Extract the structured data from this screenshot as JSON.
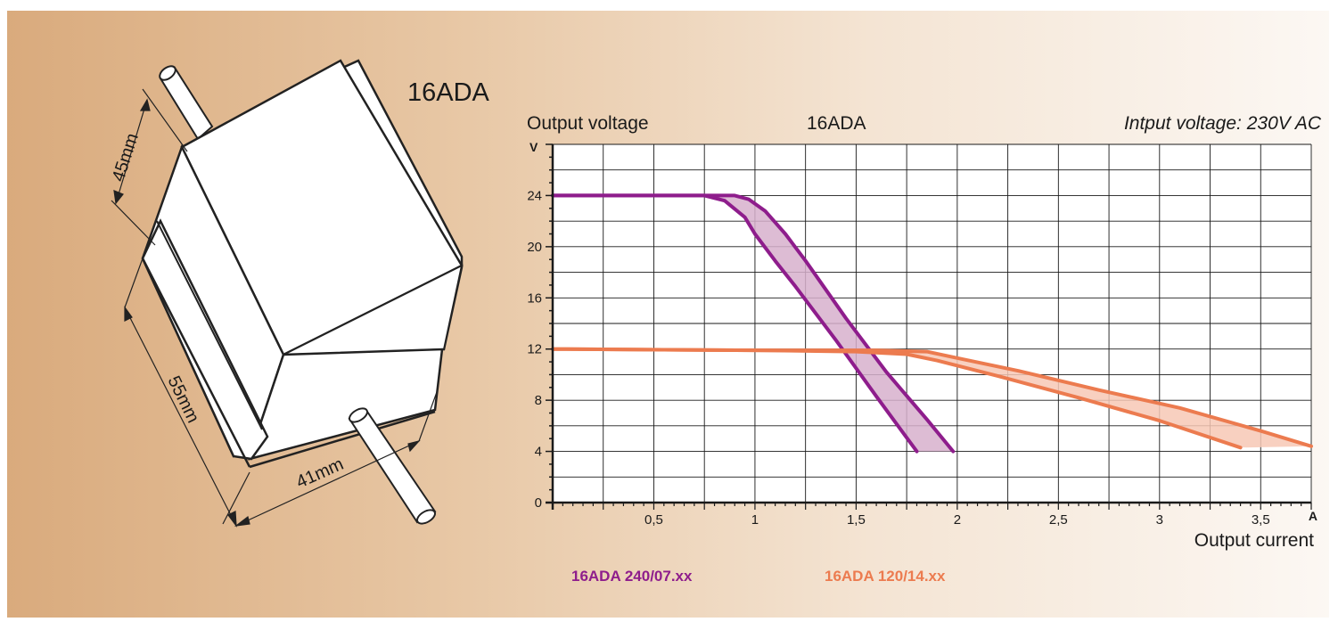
{
  "product": {
    "title": "16ADA",
    "dimensions": {
      "height": "45mm",
      "length": "55mm",
      "width": "41mm"
    }
  },
  "chart_data": {
    "type": "line",
    "title": "16ADA",
    "note": "Intput voltage: 230V AC",
    "ylabel": "Output voltage",
    "yunit": "V",
    "xlabel": "Output current",
    "xunit": "A",
    "xlim": [
      0,
      3.75
    ],
    "ylim": [
      0,
      28
    ],
    "x_ticks": [
      0.5,
      1,
      1.5,
      2,
      2.5,
      3,
      3.5
    ],
    "x_tick_labels": [
      "0,5",
      "1",
      "1,5",
      "2",
      "2,5",
      "3",
      "3,5"
    ],
    "y_ticks": [
      0,
      4,
      8,
      12,
      16,
      20,
      24
    ],
    "y_tick_labels": [
      "0",
      "4",
      "8",
      "12",
      "16",
      "20",
      "24"
    ],
    "grid": true,
    "series": [
      {
        "name": "16ADA 240/07.xx",
        "color": "#8e1d8c",
        "band_color": "#d7b0cc",
        "lower": {
          "x": [
            0,
            0.75,
            0.85,
            0.95,
            1.0,
            1.1,
            1.2,
            1.4,
            1.6,
            1.8
          ],
          "y": [
            24,
            24,
            23.6,
            22.3,
            21.0,
            18.9,
            16.9,
            12.7,
            8.3,
            4
          ]
        },
        "upper": {
          "x": [
            0,
            0.9,
            0.97,
            1.05,
            1.15,
            1.25,
            1.45,
            1.65,
            1.85,
            1.98
          ],
          "y": [
            24,
            24,
            23.7,
            22.8,
            21.0,
            18.9,
            14.4,
            10.2,
            6.5,
            4
          ]
        }
      },
      {
        "name": "16ADA 120/14.xx",
        "color": "#ec7b4f",
        "band_color": "#f7c8b5",
        "lower": {
          "x": [
            0,
            1.0,
            1.5,
            1.75,
            1.9,
            2.2,
            2.6,
            3.0,
            3.4
          ],
          "y": [
            12,
            11.9,
            11.8,
            11.6,
            11.1,
            9.9,
            8.2,
            6.4,
            4.3
          ]
        },
        "upper": {
          "x": [
            0,
            1.0,
            1.6,
            1.85,
            2.0,
            2.3,
            2.7,
            3.1,
            3.5,
            3.75
          ],
          "y": [
            12,
            11.9,
            11.9,
            11.8,
            11.3,
            10.3,
            8.8,
            7.4,
            5.6,
            4.4
          ]
        }
      }
    ]
  }
}
